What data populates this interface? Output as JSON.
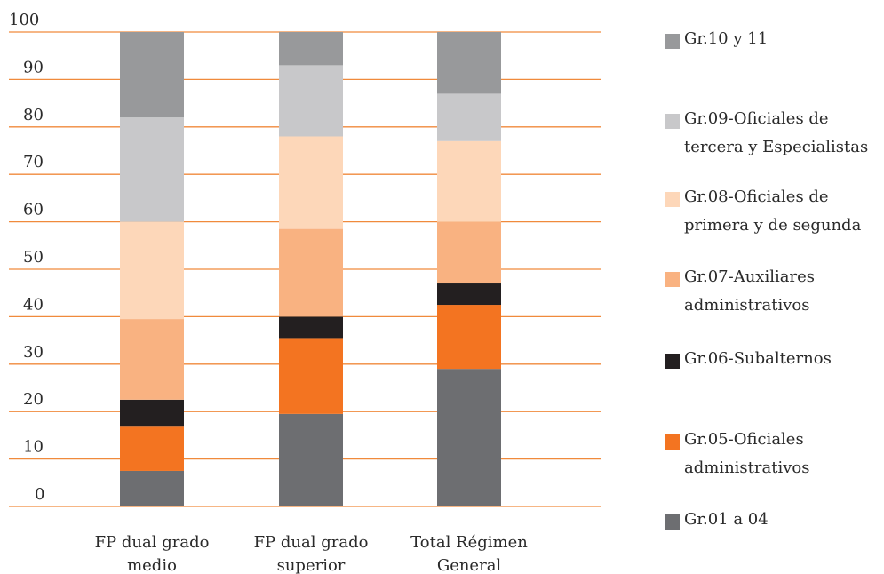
{
  "chart_data": {
    "type": "bar",
    "stacked": true,
    "title": "",
    "xlabel": "",
    "ylabel": "",
    "ylim": [
      0,
      100
    ],
    "yticks": [
      0,
      10,
      20,
      30,
      40,
      50,
      60,
      70,
      80,
      90,
      100
    ],
    "grid": true,
    "legend_position": "right",
    "categories": [
      "FP dual grado medio",
      "FP dual grado superior",
      "Total Régimen General"
    ],
    "series": [
      {
        "name": "Gr.01 a 04",
        "color": "#6d6e71",
        "values": [
          7.5,
          19.5,
          29
        ]
      },
      {
        "name": "Gr.05-Oficiales administrativos",
        "color": "#f37421",
        "values": [
          9.5,
          16,
          13.5
        ]
      },
      {
        "name": "Gr.06-Subalternos",
        "color": "#231f20",
        "values": [
          5.5,
          4.5,
          4.5
        ]
      },
      {
        "name": "Gr.07-Auxiliares administrativos",
        "color": "#f9b281",
        "values": [
          17,
          18.5,
          13
        ]
      },
      {
        "name": "Gr.08-Oficiales de primera y de segunda",
        "color": "#fdd7b9",
        "values": [
          20.5,
          19.5,
          17
        ]
      },
      {
        "name": "Gr.09-Oficiales de tercera y Especialistas",
        "color": "#c8c8ca",
        "values": [
          22,
          15,
          10
        ]
      },
      {
        "name": "Gr.10 y 11",
        "color": "#98999b",
        "values": [
          18,
          7,
          13
        ]
      }
    ]
  },
  "legend": [
    {
      "label": "Gr.10 y 11",
      "color": "#98999b"
    },
    {
      "label": "Gr.09-Oficiales de\ntercera y Especialistas",
      "color": "#c8c8ca"
    },
    {
      "label": "Gr.08-Oficiales de\nprimera y de segunda",
      "color": "#fdd7b9"
    },
    {
      "label": "Gr.07-Auxiliares\nadministrativos",
      "color": "#f9b281"
    },
    {
      "label": "Gr.06-Subalternos",
      "color": "#231f20"
    },
    {
      "label": "Gr.05-Oficiales\nadministrativos",
      "color": "#f37421"
    },
    {
      "label": "Gr.01 a 04",
      "color": "#6d6e71"
    }
  ],
  "x_category_labels": [
    [
      "FP dual grado",
      "medio"
    ],
    [
      "FP dual grado",
      "superior"
    ],
    [
      "Total Régimen",
      "General"
    ]
  ],
  "colors": {
    "gridline": "#f08a3c"
  }
}
